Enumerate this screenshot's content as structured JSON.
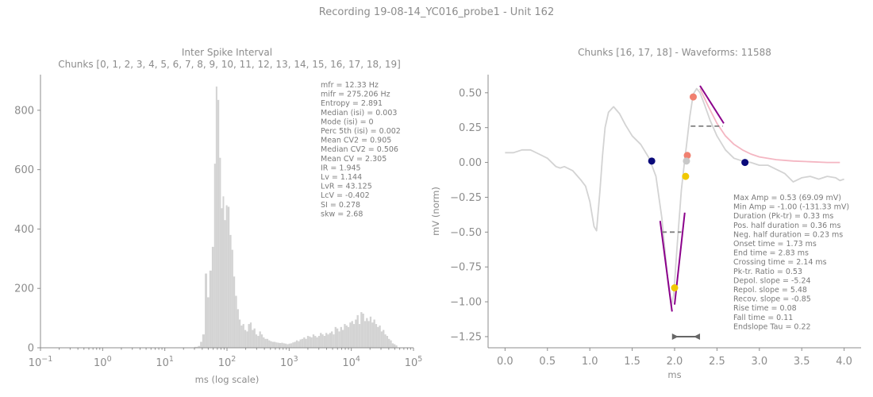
{
  "suptitle": "Recording 19-08-14_YC016_probe1 - Unit 162",
  "colors": {
    "text": "#8c8c8c",
    "bars": "#d3d3d3",
    "trace": "#d3d3d3",
    "fit": "#f4b6c2",
    "slope": "#8b008b",
    "halfwidth": "#808080",
    "marker_navy": "#0a0a7a",
    "marker_salmon": "#f08070",
    "marker_gold": "#f0c800",
    "marker_grey": "#c8c8c8",
    "duration_arrow": "#666666"
  },
  "isi_panel": {
    "title_line1": "Inter Spike Interval",
    "title_line2": "Chunks [0, 1, 2, 3, 4, 5, 6, 7, 8, 9, 10, 11, 12, 13, 14, 15, 16, 17, 18, 19]",
    "stats": [
      "mfr = 12.33 Hz",
      "mifr = 275.206 Hz",
      "Entropy = 2.891",
      "Median (isi) = 0.003",
      "Mode (isi) = 0",
      "Perc 5th (isi) = 0.002",
      "Mean CV2 = 0.905",
      "Median CV2 = 0.506",
      "Mean CV = 2.305",
      "IR = 1.945",
      "Lv = 1.144",
      "LvR = 43.125",
      "LcV = -0.402",
      "SI = 0.278",
      "skw = 2.68"
    ]
  },
  "waveform_panel": {
    "title": "Chunks [16, 17, 18] - Waveforms: 11588",
    "stats": [
      "Max Amp = 0.53 (69.09 mV)",
      "Min Amp = -1.00 (-131.33 mV)",
      "Duration (Pk-tr) = 0.33 ms",
      "Pos. half duration = 0.36 ms",
      "Neg. half duration = 0.23 ms",
      "Onset time = 1.73 ms",
      "End time = 2.83 ms",
      "Crossing time = 2.14 ms",
      "Pk-tr. Ratio = 0.53",
      "Depol. slope = -5.24",
      "Repol. slope = 5.48",
      "Recov. slope = -0.85",
      "Rise time = 0.08",
      "Fall time = 0.11",
      "Endslope Tau = 0.22"
    ]
  },
  "chart_data": [
    {
      "type": "bar",
      "xscale": "log",
      "xlabel": "ms (log scale)",
      "ylabel": "",
      "xlim": [
        0.1,
        100000
      ],
      "ylim": [
        0,
        920
      ],
      "xticks": [
        {
          "v": 0.1,
          "mant": "10",
          "exp": "−1"
        },
        {
          "v": 1,
          "mant": "10",
          "exp": "0"
        },
        {
          "v": 10,
          "mant": "10",
          "exp": "1"
        },
        {
          "v": 100,
          "mant": "10",
          "exp": "2"
        },
        {
          "v": 1000,
          "mant": "10",
          "exp": "3"
        },
        {
          "v": 10000,
          "mant": "10",
          "exp": "4"
        },
        {
          "v": 100000,
          "mant": "10",
          "exp": "5"
        }
      ],
      "yticks": [
        0,
        200,
        400,
        600,
        800
      ],
      "bins": [
        {
          "x": 30,
          "y": 3
        },
        {
          "x": 34,
          "y": 6
        },
        {
          "x": 37,
          "y": 20
        },
        {
          "x": 40,
          "y": 45
        },
        {
          "x": 44,
          "y": 250
        },
        {
          "x": 48,
          "y": 170
        },
        {
          "x": 52,
          "y": 260
        },
        {
          "x": 57,
          "y": 340
        },
        {
          "x": 62,
          "y": 620
        },
        {
          "x": 66,
          "y": 880
        },
        {
          "x": 70,
          "y": 835
        },
        {
          "x": 75,
          "y": 640
        },
        {
          "x": 80,
          "y": 470
        },
        {
          "x": 85,
          "y": 510
        },
        {
          "x": 90,
          "y": 430
        },
        {
          "x": 96,
          "y": 480
        },
        {
          "x": 102,
          "y": 475
        },
        {
          "x": 110,
          "y": 380
        },
        {
          "x": 118,
          "y": 330
        },
        {
          "x": 126,
          "y": 240
        },
        {
          "x": 135,
          "y": 175
        },
        {
          "x": 145,
          "y": 130
        },
        {
          "x": 155,
          "y": 95
        },
        {
          "x": 166,
          "y": 75
        },
        {
          "x": 178,
          "y": 80
        },
        {
          "x": 190,
          "y": 60
        },
        {
          "x": 204,
          "y": 55
        },
        {
          "x": 218,
          "y": 80
        },
        {
          "x": 234,
          "y": 85
        },
        {
          "x": 250,
          "y": 60
        },
        {
          "x": 268,
          "y": 65
        },
        {
          "x": 287,
          "y": 45
        },
        {
          "x": 307,
          "y": 40
        },
        {
          "x": 329,
          "y": 55
        },
        {
          "x": 352,
          "y": 45
        },
        {
          "x": 377,
          "y": 35
        },
        {
          "x": 403,
          "y": 30
        },
        {
          "x": 432,
          "y": 30
        },
        {
          "x": 462,
          "y": 25
        },
        {
          "x": 495,
          "y": 22
        },
        {
          "x": 530,
          "y": 20
        },
        {
          "x": 567,
          "y": 20
        },
        {
          "x": 607,
          "y": 18
        },
        {
          "x": 650,
          "y": 17
        },
        {
          "x": 696,
          "y": 16
        },
        {
          "x": 745,
          "y": 17
        },
        {
          "x": 798,
          "y": 15
        },
        {
          "x": 854,
          "y": 14
        },
        {
          "x": 914,
          "y": 12
        },
        {
          "x": 979,
          "y": 14
        },
        {
          "x": 1048,
          "y": 15
        },
        {
          "x": 1122,
          "y": 18
        },
        {
          "x": 1201,
          "y": 20
        },
        {
          "x": 1286,
          "y": 25
        },
        {
          "x": 1377,
          "y": 22
        },
        {
          "x": 1474,
          "y": 28
        },
        {
          "x": 1578,
          "y": 30
        },
        {
          "x": 1690,
          "y": 35
        },
        {
          "x": 1809,
          "y": 30
        },
        {
          "x": 1937,
          "y": 40
        },
        {
          "x": 2074,
          "y": 38
        },
        {
          "x": 2220,
          "y": 35
        },
        {
          "x": 2377,
          "y": 45
        },
        {
          "x": 2545,
          "y": 40
        },
        {
          "x": 2725,
          "y": 35
        },
        {
          "x": 2918,
          "y": 40
        },
        {
          "x": 3124,
          "y": 50
        },
        {
          "x": 3345,
          "y": 45
        },
        {
          "x": 3581,
          "y": 40
        },
        {
          "x": 3834,
          "y": 50
        },
        {
          "x": 4105,
          "y": 45
        },
        {
          "x": 4395,
          "y": 50
        },
        {
          "x": 4706,
          "y": 55
        },
        {
          "x": 5038,
          "y": 45
        },
        {
          "x": 5394,
          "y": 70
        },
        {
          "x": 5776,
          "y": 65
        },
        {
          "x": 6184,
          "y": 55
        },
        {
          "x": 6621,
          "y": 70
        },
        {
          "x": 7089,
          "y": 60
        },
        {
          "x": 7590,
          "y": 80
        },
        {
          "x": 8126,
          "y": 75
        },
        {
          "x": 8700,
          "y": 70
        },
        {
          "x": 9315,
          "y": 85
        },
        {
          "x": 9973,
          "y": 90
        },
        {
          "x": 10678,
          "y": 80
        },
        {
          "x": 11433,
          "y": 95
        },
        {
          "x": 12241,
          "y": 110
        },
        {
          "x": 13106,
          "y": 80
        },
        {
          "x": 14032,
          "y": 120
        },
        {
          "x": 15024,
          "y": 115
        },
        {
          "x": 16086,
          "y": 90
        },
        {
          "x": 17223,
          "y": 100
        },
        {
          "x": 18440,
          "y": 90
        },
        {
          "x": 19743,
          "y": 105
        },
        {
          "x": 21138,
          "y": 85
        },
        {
          "x": 22632,
          "y": 95
        },
        {
          "x": 24232,
          "y": 80
        },
        {
          "x": 25944,
          "y": 70
        },
        {
          "x": 27778,
          "y": 75
        },
        {
          "x": 29741,
          "y": 55
        },
        {
          "x": 31843,
          "y": 60
        },
        {
          "x": 34093,
          "y": 45
        },
        {
          "x": 36503,
          "y": 40
        },
        {
          "x": 39083,
          "y": 30
        },
        {
          "x": 41845,
          "y": 25
        },
        {
          "x": 44802,
          "y": 15
        },
        {
          "x": 47968,
          "y": 12
        },
        {
          "x": 51358,
          "y": 8
        }
      ]
    },
    {
      "type": "line",
      "xlabel": "ms",
      "ylabel": "mV (norm)",
      "xlim": [
        -0.2,
        4.2
      ],
      "ylim": [
        -1.33,
        0.63
      ],
      "xticks": [
        "0.0",
        "0.5",
        "1.0",
        "1.5",
        "2.0",
        "2.5",
        "3.0",
        "3.5",
        "4.0"
      ],
      "yticks": [
        "0.50",
        "0.25",
        "0.00",
        "−0.25",
        "−0.50",
        "−0.75",
        "−1.00",
        "−1.25"
      ],
      "series": [
        {
          "role": "mean-waveform",
          "x": [
            0.0,
            0.1,
            0.2,
            0.3,
            0.4,
            0.5,
            0.6,
            0.65,
            0.7,
            0.8,
            0.9,
            0.95,
            1.0,
            1.05,
            1.08,
            1.12,
            1.15,
            1.18,
            1.22,
            1.28,
            1.35,
            1.42,
            1.5,
            1.6,
            1.7,
            1.78,
            1.85,
            1.92,
            1.96,
            1.99,
            2.03,
            2.08,
            2.12,
            2.15,
            2.18,
            2.22,
            2.26,
            2.3,
            2.35,
            2.42,
            2.5,
            2.6,
            2.7,
            2.8,
            2.9,
            3.0,
            3.1,
            3.2,
            3.3,
            3.4,
            3.5,
            3.6,
            3.7,
            3.8,
            3.9,
            3.95,
            4.0
          ],
          "y": [
            0.07,
            0.07,
            0.09,
            0.09,
            0.06,
            0.03,
            -0.03,
            -0.04,
            -0.03,
            -0.06,
            -0.13,
            -0.17,
            -0.28,
            -0.46,
            -0.49,
            -0.2,
            0.05,
            0.25,
            0.36,
            0.4,
            0.35,
            0.27,
            0.19,
            0.13,
            0.03,
            -0.1,
            -0.4,
            -0.85,
            -1.03,
            -0.95,
            -0.6,
            -0.2,
            0.02,
            0.17,
            0.33,
            0.49,
            0.53,
            0.5,
            0.42,
            0.3,
            0.19,
            0.09,
            0.03,
            0.01,
            0.0,
            -0.02,
            -0.02,
            -0.05,
            -0.08,
            -0.14,
            -0.11,
            -0.1,
            -0.12,
            -0.1,
            -0.11,
            -0.13,
            -0.12
          ]
        },
        {
          "role": "endslope-fit",
          "x": [
            2.3,
            2.4,
            2.5,
            2.6,
            2.7,
            2.8,
            2.9,
            3.0,
            3.2,
            3.4,
            3.6,
            3.8,
            3.95
          ],
          "y": [
            0.53,
            0.4,
            0.28,
            0.19,
            0.13,
            0.09,
            0.06,
            0.04,
            0.02,
            0.01,
            0.005,
            0.0,
            0.0
          ]
        }
      ],
      "slopes": [
        {
          "x": [
            1.83,
            1.97
          ],
          "y": [
            -0.42,
            -1.07
          ]
        },
        {
          "x": [
            2.0,
            2.12
          ],
          "y": [
            -1.02,
            -0.36
          ]
        },
        {
          "x": [
            2.3,
            2.58
          ],
          "y": [
            0.55,
            0.28
          ]
        }
      ],
      "halfwidths": [
        {
          "x": [
            1.85,
            2.08
          ],
          "y": -0.5
        },
        {
          "x": [
            2.19,
            2.57
          ],
          "y": 0.26
        }
      ],
      "markers": [
        {
          "x": 1.73,
          "y": 0.01,
          "color": "#0a0a7a"
        },
        {
          "x": 2.83,
          "y": 0.0,
          "color": "#0a0a7a"
        },
        {
          "x": 2.22,
          "y": 0.47,
          "color": "#f08070"
        },
        {
          "x": 2.15,
          "y": 0.05,
          "color": "#f08070"
        },
        {
          "x": 2.13,
          "y": -0.1,
          "color": "#f0c800"
        },
        {
          "x": 2.0,
          "y": -0.9,
          "color": "#f0c800"
        },
        {
          "x": 2.14,
          "y": 0.01,
          "color": "#c8c8c8"
        }
      ],
      "duration_arrow": {
        "x": [
          1.97,
          2.3
        ],
        "y": -1.25
      }
    }
  ]
}
